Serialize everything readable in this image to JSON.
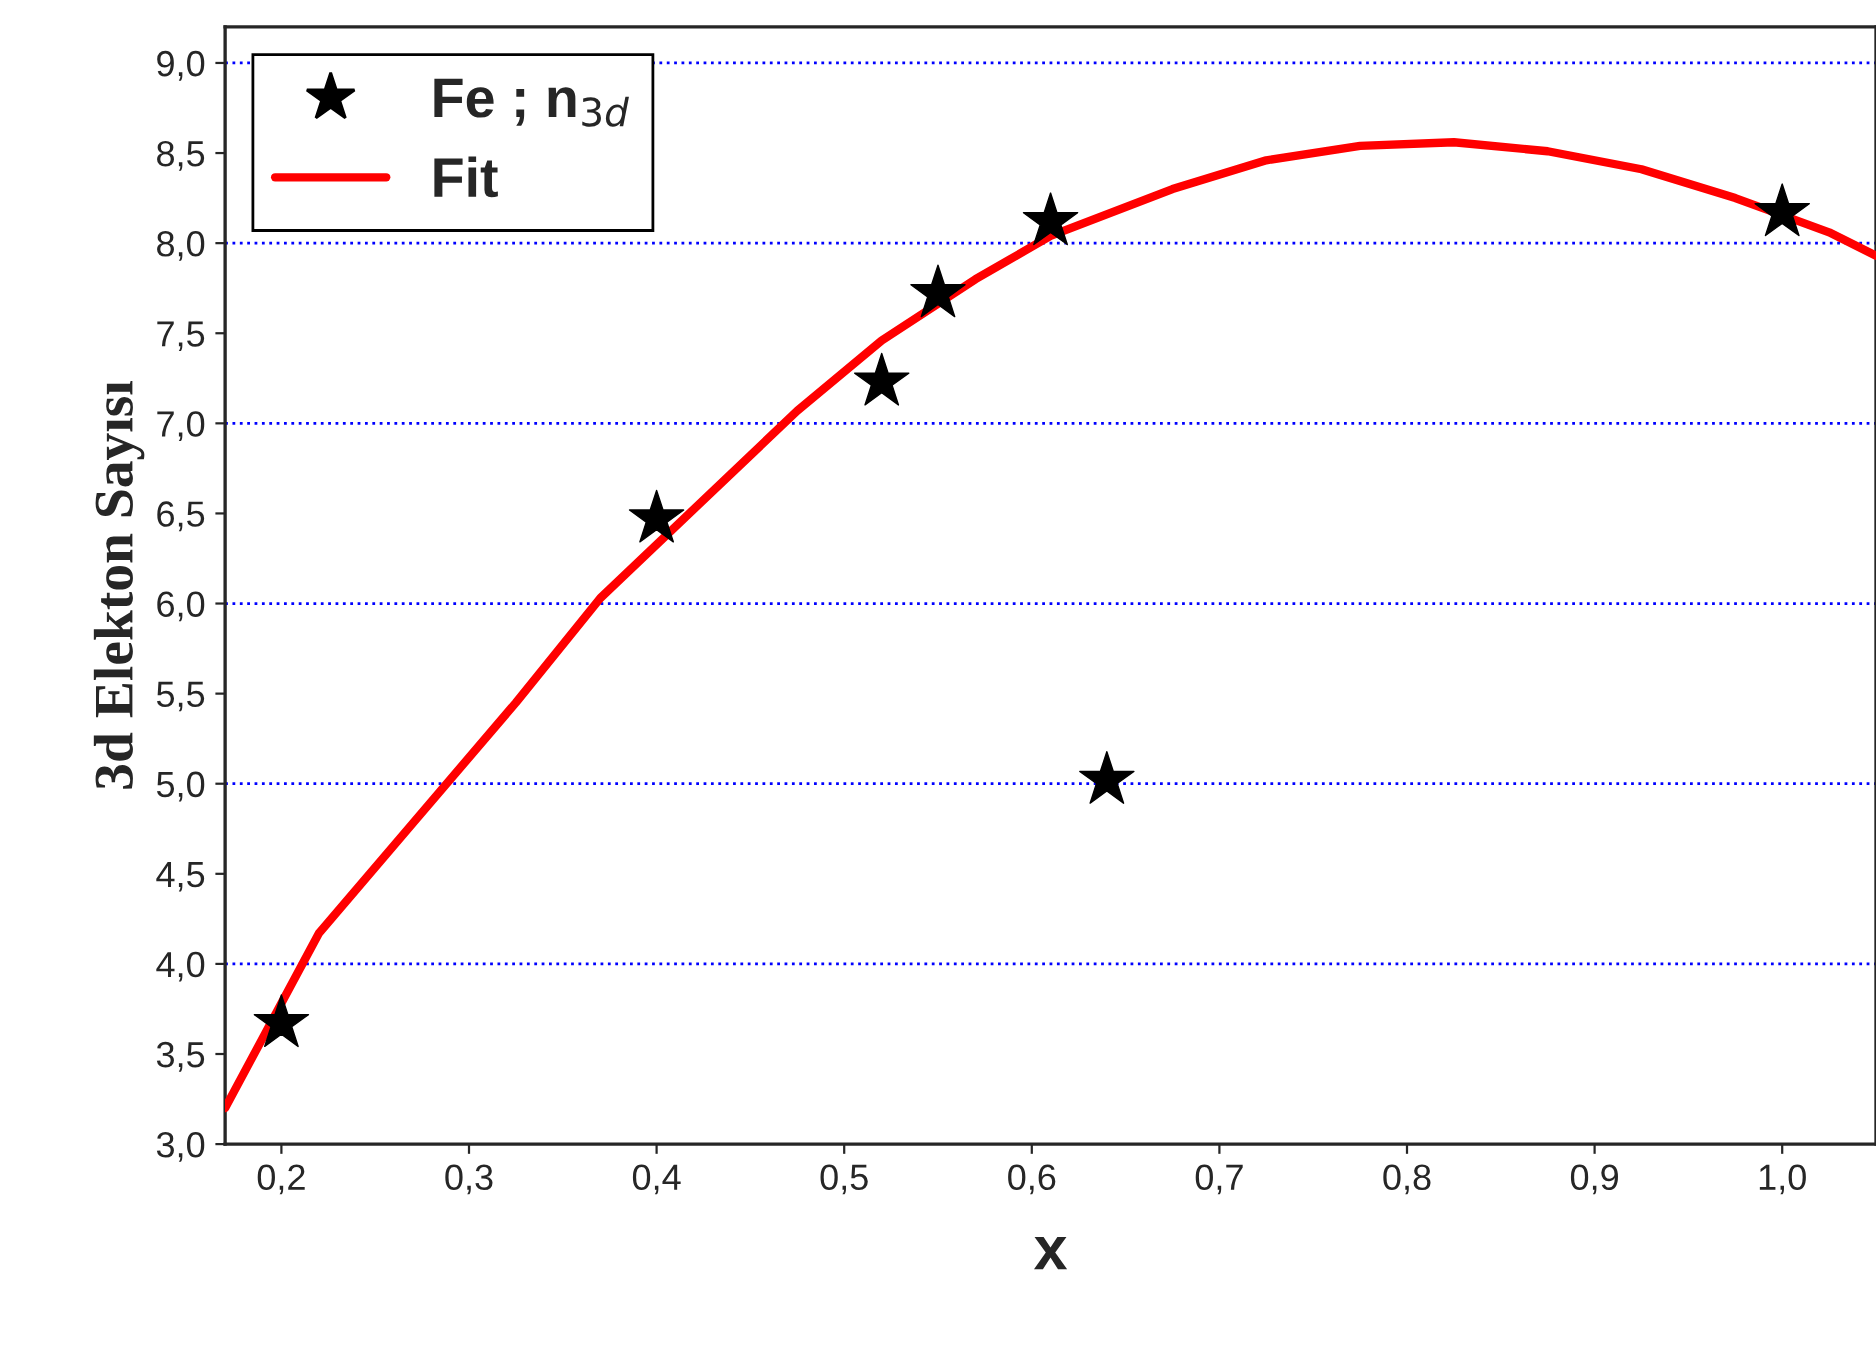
{
  "chart_data": {
    "type": "scatter",
    "xlabel": "x",
    "ylabel": "3d Elekton Sayısı",
    "xlim": [
      0.17,
      1.05
    ],
    "ylim": [
      3.0,
      9.2
    ],
    "xticks": [
      {
        "value": 0.2,
        "label": "0,2"
      },
      {
        "value": 0.3,
        "label": "0,3"
      },
      {
        "value": 0.4,
        "label": "0,4"
      },
      {
        "value": 0.5,
        "label": "0,5"
      },
      {
        "value": 0.6,
        "label": "0,6"
      },
      {
        "value": 0.7,
        "label": "0,7"
      },
      {
        "value": 0.8,
        "label": "0,8"
      },
      {
        "value": 0.9,
        "label": "0,9"
      },
      {
        "value": 1.0,
        "label": "1,0"
      }
    ],
    "yticks": [
      {
        "value": 3.0,
        "label": "3,0"
      },
      {
        "value": 3.5,
        "label": "3,5"
      },
      {
        "value": 4.0,
        "label": "4,0"
      },
      {
        "value": 4.5,
        "label": "4,5"
      },
      {
        "value": 5.0,
        "label": "5,0"
      },
      {
        "value": 5.5,
        "label": "5,5"
      },
      {
        "value": 6.0,
        "label": "6,0"
      },
      {
        "value": 6.5,
        "label": "6,5"
      },
      {
        "value": 7.0,
        "label": "7,0"
      },
      {
        "value": 7.5,
        "label": "7,5"
      },
      {
        "value": 8.0,
        "label": "8,0"
      },
      {
        "value": 8.5,
        "label": "8,5"
      },
      {
        "value": 9.0,
        "label": "9,0"
      }
    ],
    "series": [
      {
        "name": "Fe ; n$_{3d}$",
        "color": "#000000",
        "marker": "star",
        "x": [
          0.2,
          0.4,
          0.52,
          0.55,
          0.61,
          0.64,
          1.0
        ],
        "values": [
          3.67,
          6.47,
          7.23,
          7.72,
          8.12,
          5.02,
          8.17
        ]
      },
      {
        "name": "Fit",
        "type": "line",
        "color": "#ff0000",
        "line_style": "solid",
        "x": [
          0.17,
          0.22,
          0.27,
          0.325,
          0.37,
          0.475,
          0.52,
          0.57,
          0.61,
          0.675,
          0.725,
          0.775,
          0.825,
          0.875,
          0.925,
          0.975,
          1.025,
          1.05
        ],
        "values": [
          3.2,
          4.17,
          4.78,
          5.45,
          6.03,
          7.07,
          7.46,
          7.8,
          8.04,
          8.3,
          8.46,
          8.54,
          8.56,
          8.51,
          8.41,
          8.25,
          8.06,
          7.93
        ]
      }
    ],
    "ref_lines": [
      {
        "axis": "y",
        "value": 4.0,
        "color": "#0000ff",
        "line_style": "dotted"
      },
      {
        "axis": "y",
        "value": 5.0,
        "color": "#0000ff",
        "line_style": "dotted"
      },
      {
        "axis": "y",
        "value": 6.0,
        "color": "#0000ff",
        "line_style": "dotted"
      },
      {
        "axis": "y",
        "value": 7.0,
        "color": "#0000ff",
        "line_style": "dotted"
      },
      {
        "axis": "y",
        "value": 8.0,
        "color": "#0000ff",
        "line_style": "dotted"
      },
      {
        "axis": "y",
        "value": 9.0,
        "color": "#0000ff",
        "line_style": "dotted"
      }
    ],
    "legend": "top left"
  }
}
